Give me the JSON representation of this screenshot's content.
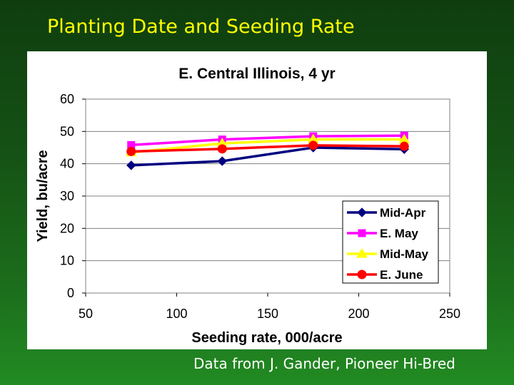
{
  "slide": {
    "title": "Planting Date and Seeding Rate",
    "footer": "Data from J. Gander, Pioneer Hi-Bred"
  },
  "colors": {
    "background_dark": "#0f3d0f",
    "background_light": "#228b22",
    "title_text": "#ffff00",
    "plot_border": "#808080",
    "gridline": "#808080"
  },
  "chart_data": {
    "type": "line",
    "title": "E. Central Illinois, 4 yr",
    "xlabel": "Seeding rate, 000/acre",
    "ylabel": "Yield, bu/acre",
    "xlim": [
      50,
      250
    ],
    "ylim": [
      0,
      60
    ],
    "xticks": [
      50,
      100,
      150,
      200,
      250
    ],
    "yticks": [
      0,
      10,
      20,
      30,
      40,
      50,
      60
    ],
    "grid": "horizontal",
    "legend_position": "right",
    "x": [
      75,
      125,
      175,
      225
    ],
    "series": [
      {
        "name": "Mid-Apr",
        "values": [
          39.5,
          40.8,
          45.0,
          44.5
        ],
        "color": "#000080",
        "marker": "diamond"
      },
      {
        "name": "E. May",
        "values": [
          45.8,
          47.5,
          48.5,
          48.7
        ],
        "color": "#ff00ff",
        "marker": "square"
      },
      {
        "name": "Mid-May",
        "values": [
          43.5,
          46.3,
          47.5,
          47.5
        ],
        "color": "#ffff00",
        "marker": "triangle"
      },
      {
        "name": "E. June",
        "values": [
          43.8,
          44.6,
          45.7,
          45.4
        ],
        "color": "#ff0000",
        "marker": "circle"
      }
    ]
  }
}
